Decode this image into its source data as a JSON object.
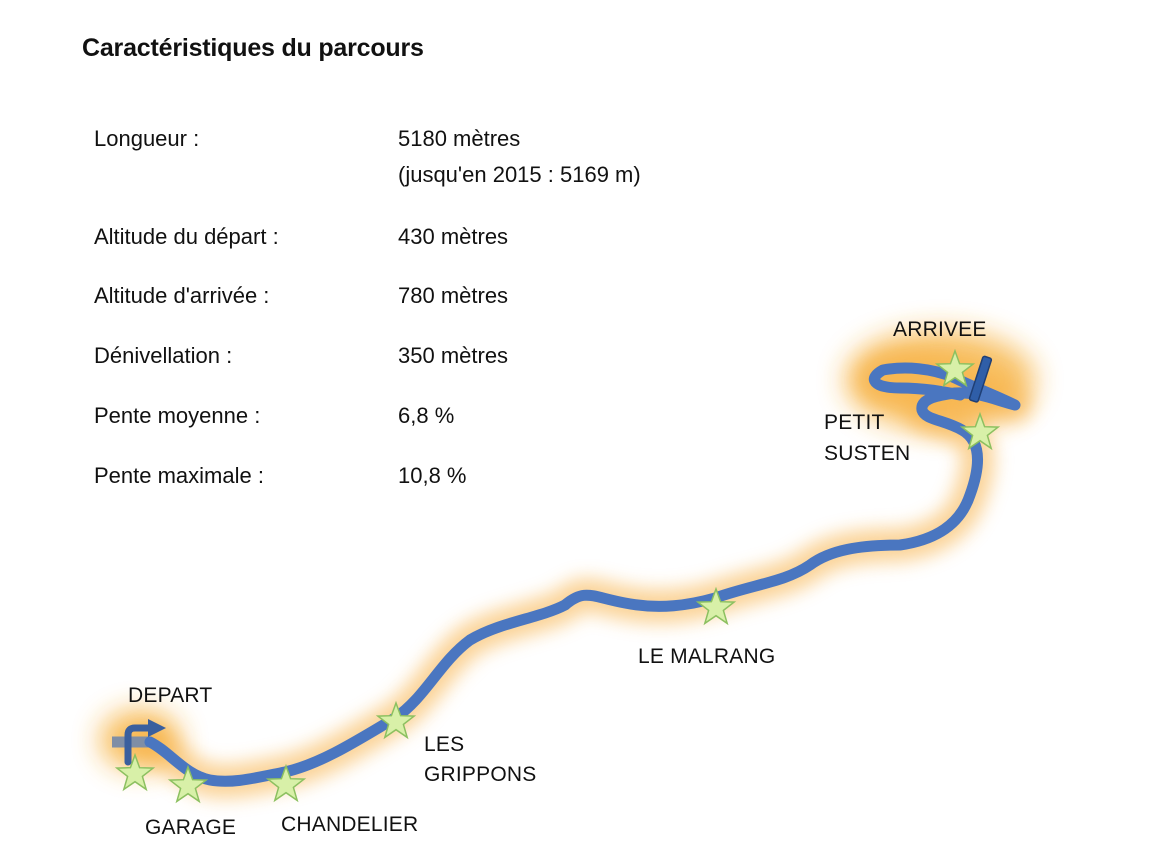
{
  "title": "Caractéristiques du parcours",
  "specs": [
    {
      "label": "Longueur :",
      "value": "5180 mètres",
      "value2": "(jusqu'en 2015 : 5169 m)"
    },
    {
      "label": "Altitude du départ :",
      "value": "430 mètres"
    },
    {
      "label": "Altitude d'arrivée :",
      "value": "780 mètres"
    },
    {
      "label": "Dénivellation :",
      "value": "350 mètres"
    },
    {
      "label": "Pente moyenne :",
      "value": "6,8 %"
    },
    {
      "label": "Pente maximale :",
      "value": "10,8 %"
    }
  ],
  "map": {
    "route_color": "#4a76c0",
    "glow_color": "#f5a623",
    "marker_color": "#d8f0a8",
    "labels": {
      "depart": "DEPART",
      "garage": "GARAGE",
      "chandelier": "CHANDELIER",
      "les_grippons_1": "LES",
      "les_grippons_2": "GRIPPONS",
      "le_malrang": "LE MALRANG",
      "petit_susten_1": "PETIT",
      "petit_susten_2": "SUSTEN",
      "arrivee": "ARRIVEE"
    }
  }
}
